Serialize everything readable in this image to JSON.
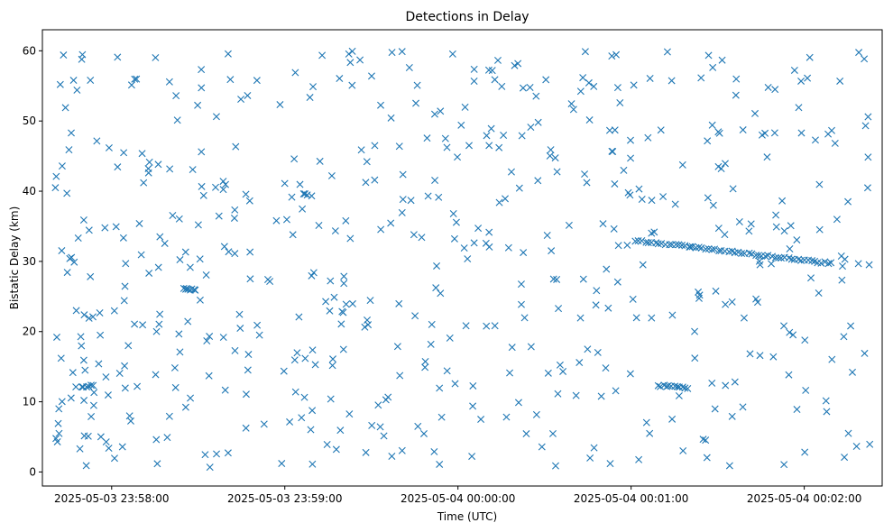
{
  "chart_data": {
    "type": "scatter",
    "title": "Detections in Delay",
    "xlabel": "Time (UTC)",
    "ylabel": "Bistatic Delay (km)",
    "marker": "x",
    "color": "#1f77b4",
    "grid": false,
    "x_unit": "seconds after 2025-05-03 23:58:00 UTC",
    "xlim": [
      -24,
      267
    ],
    "ylim": [
      -2,
      63
    ],
    "xticks": [
      {
        "value": 0,
        "label": "2025-05-03 23:58:00"
      },
      {
        "value": 60,
        "label": "2025-05-03 23:59:00"
      },
      {
        "value": 120,
        "label": "2025-05-04 00:00:00"
      },
      {
        "value": 180,
        "label": "2025-05-04 00:01:00"
      },
      {
        "value": 240,
        "label": "2025-05-04 00:02:00"
      }
    ],
    "yticks": [
      0,
      10,
      20,
      30,
      40,
      50,
      60
    ],
    "tracks": [
      {
        "description": "linear track",
        "t_start": 181.5,
        "t_end": 249.5,
        "y_start": 33.0,
        "y_end": 29.7,
        "count": 60
      },
      {
        "description": "linear track",
        "t_start": 25.0,
        "t_end": 29.0,
        "y_start": 26.2,
        "y_end": 25.9,
        "count": 8
      },
      {
        "description": "linear track",
        "t_start": 189.5,
        "t_end": 199.5,
        "y_start": 12.3,
        "y_end": 12.0,
        "count": 12
      },
      {
        "description": "linear track",
        "t_start": -10.5,
        "t_end": -6.5,
        "y_start": 12.1,
        "y_end": 12.4,
        "count": 6
      },
      {
        "description": "linear track",
        "t_start": 67.0,
        "t_end": 69.0,
        "y_start": 39.6,
        "y_end": 39.4,
        "count": 3
      }
    ],
    "scattered": {
      "count": 560,
      "t_range": [
        -20,
        263
      ],
      "y_range": [
        0.5,
        60
      ],
      "sample_points": [
        [
          -19.5,
          40.5
        ],
        [
          -19.2,
          42.1
        ],
        [
          -19,
          19.2
        ],
        [
          -18.8,
          4.3
        ],
        [
          -18.3,
          9.0
        ],
        [
          -17.8,
          55.2
        ],
        [
          -17.5,
          16.2
        ],
        [
          -16.7,
          59.4
        ],
        [
          -16.0,
          51.9
        ],
        [
          -15.5,
          39.7
        ],
        [
          -14.8,
          45.9
        ],
        [
          -14.5,
          30.4
        ],
        [
          -14.0,
          48.3
        ],
        [
          -13.2,
          55.8
        ],
        [
          -12.0,
          54.4
        ],
        [
          -11.0,
          3.3
        ],
        [
          -9.6,
          10.2
        ],
        [
          -8.8,
          0.9
        ],
        [
          -6.5,
          22.1
        ],
        [
          -4.5,
          15.4
        ]
      ]
    }
  }
}
